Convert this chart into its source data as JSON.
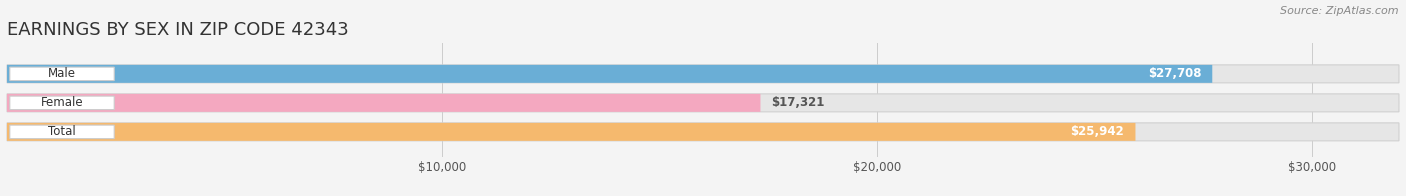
{
  "title": "EARNINGS BY SEX IN ZIP CODE 42343",
  "source": "Source: ZipAtlas.com",
  "categories": [
    "Male",
    "Female",
    "Total"
  ],
  "values": [
    27708,
    17321,
    25942
  ],
  "bar_colors": [
    "#6aaed6",
    "#f4a8c0",
    "#f5b96e"
  ],
  "value_labels": [
    "$27,708",
    "$17,321",
    "$25,942"
  ],
  "value_label_colors": [
    "white",
    "#555555",
    "white"
  ],
  "xlim": [
    0,
    32000
  ],
  "xticks": [
    10000,
    20000,
    30000
  ],
  "xtick_labels": [
    "$10,000",
    "$20,000",
    "$30,000"
  ],
  "background_color": "#f4f4f4",
  "bar_background_color": "#e6e6e6",
  "title_fontsize": 13,
  "source_fontsize": 8,
  "bar_height": 0.62,
  "figsize": [
    14.06,
    1.96
  ],
  "dpi": 100
}
